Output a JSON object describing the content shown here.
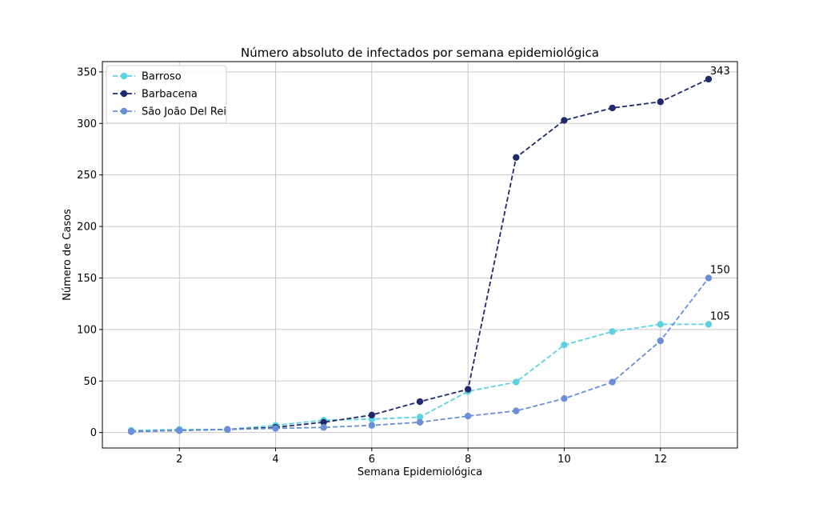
{
  "chart_data": {
    "type": "line",
    "title": "Número absoluto de infectados por semana epidemiológica",
    "xlabel": "Semana Epidemiológica",
    "ylabel": "Número de Casos",
    "xlim": [
      0.4,
      13.6
    ],
    "ylim": [
      -15,
      360
    ],
    "xticks": [
      2,
      4,
      6,
      8,
      10,
      12
    ],
    "yticks": [
      0,
      50,
      100,
      150,
      200,
      250,
      300,
      350
    ],
    "grid": true,
    "legend_position": "top-left",
    "x": [
      1,
      2,
      3,
      4,
      5,
      6,
      7,
      8,
      9,
      10,
      11,
      12,
      13
    ],
    "series": [
      {
        "name": "Barroso",
        "color": "#5bd3e0",
        "values": [
          2,
          3,
          3,
          7,
          12,
          13,
          15,
          40,
          49,
          85,
          98,
          105,
          105
        ]
      },
      {
        "name": "Barbacena",
        "color": "#1f2a6e",
        "values": [
          1,
          2,
          3,
          5,
          10,
          17,
          30,
          42,
          267,
          303,
          315,
          321,
          343
        ]
      },
      {
        "name": "São João Del Rei",
        "color": "#6a8fd8",
        "values": [
          1,
          2,
          3,
          4,
          5,
          7,
          10,
          16,
          21,
          33,
          49,
          89,
          150
        ]
      }
    ],
    "annotations": [
      {
        "text": "343",
        "x": 13,
        "y": 343
      },
      {
        "text": "150",
        "x": 13,
        "y": 150
      },
      {
        "text": "105",
        "x": 13,
        "y": 105
      }
    ]
  }
}
